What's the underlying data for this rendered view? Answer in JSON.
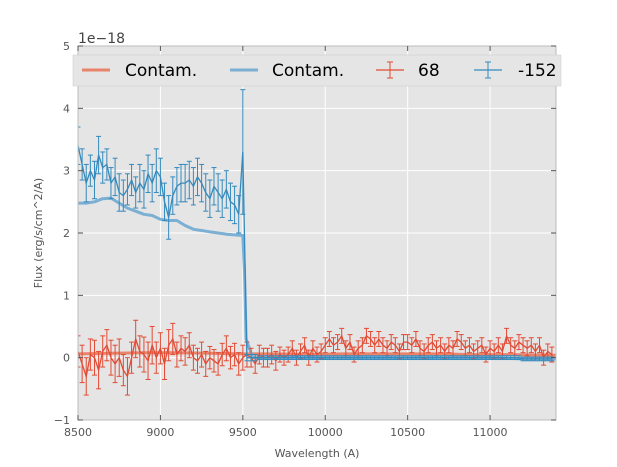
{
  "chart_data": {
    "type": "line",
    "title": "",
    "xlabel": "Wavelength (A)",
    "ylabel": "Flux (erg/s/cm^2/A)",
    "y_offset_label": "1e−18",
    "xlim": [
      8500,
      11400
    ],
    "ylim": [
      -1,
      5
    ],
    "xticks": [
      8500,
      9000,
      9500,
      10000,
      10500,
      11000
    ],
    "xtick_labels": [
      "8500",
      "9000",
      "9500",
      "10000",
      "10500",
      "11000"
    ],
    "yticks": [
      -1,
      0,
      1,
      2,
      3,
      4,
      5
    ],
    "ytick_labels": [
      "−1",
      "0",
      "1",
      "2",
      "3",
      "4",
      "5"
    ],
    "grid": true,
    "legend_placement": "top",
    "legend": [
      {
        "label": "Contam.",
        "kind": "line",
        "color": "#e8836c"
      },
      {
        "label": "Contam.",
        "kind": "line",
        "color": "#7bafd4"
      },
      {
        "label": "68",
        "kind": "errorbar",
        "color": "#e24a33"
      },
      {
        "label": "-152",
        "kind": "errorbar",
        "color": "#348abd"
      }
    ],
    "series": [
      {
        "name": "Contam. (68)",
        "kind": "line",
        "color": "#e8836c",
        "x": [
          8500,
          8700,
          8900,
          9100,
          9300,
          9500,
          9700,
          9900,
          10100,
          10300,
          10500,
          10700,
          10900,
          11100,
          11400
        ],
        "y": [
          0.06,
          0.07,
          0.08,
          0.08,
          0.07,
          0.06,
          0.06,
          0.05,
          0.06,
          0.06,
          0.06,
          0.06,
          0.05,
          0.05,
          0.04
        ]
      },
      {
        "name": "Contam. (-152)",
        "kind": "line",
        "color": "#7bafd4",
        "x": [
          8500,
          8550,
          8600,
          8650,
          8700,
          8750,
          8800,
          8850,
          8900,
          8950,
          9000,
          9050,
          9100,
          9150,
          9200,
          9250,
          9300,
          9350,
          9400,
          9450,
          9500,
          9510,
          9520,
          9560,
          9700,
          10000,
          10500,
          11000,
          11200,
          11400
        ],
        "y": [
          2.48,
          2.48,
          2.5,
          2.55,
          2.56,
          2.48,
          2.4,
          2.35,
          2.3,
          2.28,
          2.22,
          2.2,
          2.2,
          2.12,
          2.06,
          2.04,
          2.02,
          2.0,
          1.98,
          1.97,
          1.96,
          1.4,
          0.3,
          0.0,
          0.0,
          0.0,
          0.0,
          0.0,
          -0.02,
          -0.02
        ]
      },
      {
        "name": "68",
        "kind": "errorbar",
        "color": "#e24a33",
        "x": [
          8500,
          8525,
          8550,
          8575,
          8600,
          8625,
          8650,
          8675,
          8700,
          8725,
          8750,
          8775,
          8800,
          8825,
          8850,
          8875,
          8900,
          8925,
          8950,
          8975,
          9000,
          9025,
          9050,
          9075,
          9100,
          9125,
          9150,
          9175,
          9200,
          9225,
          9250,
          9275,
          9300,
          9325,
          9350,
          9375,
          9400,
          9425,
          9450,
          9475,
          9500,
          9525,
          9550,
          9575,
          9600,
          9625,
          9650,
          9675,
          9700,
          9725,
          9750,
          9775,
          9800,
          9825,
          9850,
          9875,
          9900,
          9925,
          9950,
          9975,
          10000,
          10025,
          10050,
          10075,
          10100,
          10125,
          10150,
          10175,
          10200,
          10225,
          10250,
          10275,
          10300,
          10325,
          10350,
          10375,
          10400,
          10425,
          10450,
          10475,
          10500,
          10525,
          10550,
          10575,
          10600,
          10625,
          10650,
          10675,
          10700,
          10725,
          10750,
          10775,
          10800,
          10825,
          10850,
          10875,
          10900,
          10925,
          10950,
          10975,
          11000,
          11025,
          11050,
          11075,
          11100,
          11125,
          11150,
          11175,
          11200,
          11225,
          11250,
          11275,
          11300,
          11325,
          11350,
          11375
        ],
        "y": [
          0.1,
          -0.1,
          -0.3,
          0.05,
          0.0,
          -0.2,
          0.1,
          0.2,
          0.0,
          -0.1,
          0.0,
          -0.2,
          -0.3,
          0.0,
          0.3,
          0.1,
          0.05,
          -0.05,
          0.2,
          0.0,
          0.15,
          -0.1,
          0.2,
          0.3,
          0.05,
          0.15,
          0.1,
          0.2,
          0.0,
          -0.05,
          0.05,
          -0.1,
          0.0,
          -0.05,
          -0.1,
          0.05,
          0.15,
          0.0,
          0.05,
          -0.1,
          0.0,
          0.05,
          0.0,
          -0.1,
          0.05,
          0.0,
          0.0,
          0.05,
          -0.05,
          0.05,
          0.0,
          0.05,
          0.15,
          0.0,
          0.1,
          0.2,
          0.0,
          0.15,
          0.05,
          0.1,
          0.2,
          0.3,
          0.2,
          0.25,
          0.35,
          0.15,
          0.25,
          0.05,
          0.15,
          0.2,
          0.35,
          0.3,
          0.2,
          0.3,
          0.2,
          0.15,
          0.25,
          0.2,
          0.1,
          0.25,
          0.25,
          0.2,
          0.3,
          0.15,
          0.1,
          0.2,
          0.25,
          0.15,
          0.2,
          0.1,
          0.2,
          0.15,
          0.3,
          0.25,
          0.15,
          0.2,
          0.1,
          0.15,
          0.2,
          0.05,
          0.15,
          0.1,
          0.2,
          0.1,
          0.35,
          0.2,
          0.15,
          0.25,
          0.2,
          0.15,
          0.2,
          0.1,
          0.2,
          0.0,
          0.1,
          0.05
        ],
        "err": [
          0.25,
          0.3,
          0.3,
          0.25,
          0.28,
          0.3,
          0.25,
          0.25,
          0.28,
          0.3,
          0.3,
          0.25,
          0.3,
          0.25,
          0.3,
          0.25,
          0.28,
          0.3,
          0.3,
          0.25,
          0.25,
          0.25,
          0.25,
          0.25,
          0.2,
          0.2,
          0.22,
          0.2,
          0.2,
          0.2,
          0.2,
          0.2,
          0.18,
          0.18,
          0.18,
          0.18,
          0.2,
          0.18,
          0.18,
          0.18,
          0.2,
          0.2,
          0.15,
          0.15,
          0.15,
          0.15,
          0.15,
          0.15,
          0.15,
          0.12,
          0.12,
          0.12,
          0.12,
          0.12,
          0.12,
          0.12,
          0.12,
          0.12,
          0.12,
          0.12,
          0.12,
          0.12,
          0.12,
          0.12,
          0.12,
          0.12,
          0.12,
          0.12,
          0.12,
          0.12,
          0.12,
          0.12,
          0.12,
          0.12,
          0.12,
          0.12,
          0.12,
          0.12,
          0.12,
          0.12,
          0.12,
          0.12,
          0.12,
          0.12,
          0.12,
          0.12,
          0.12,
          0.12,
          0.12,
          0.12,
          0.12,
          0.12,
          0.12,
          0.12,
          0.12,
          0.12,
          0.12,
          0.12,
          0.12,
          0.12,
          0.12,
          0.12,
          0.12,
          0.12,
          0.12,
          0.12,
          0.12,
          0.12,
          0.12,
          0.12,
          0.12,
          0.12,
          0.12,
          0.12,
          0.12,
          0.12
        ]
      },
      {
        "name": "-152",
        "kind": "errorbar",
        "color": "#348abd",
        "x": [
          8500,
          8525,
          8550,
          8575,
          8600,
          8625,
          8650,
          8675,
          8700,
          8725,
          8750,
          8775,
          8800,
          8825,
          8850,
          8875,
          8900,
          8925,
          8950,
          8975,
          9000,
          9025,
          9050,
          9075,
          9100,
          9125,
          9150,
          9175,
          9200,
          9225,
          9250,
          9275,
          9300,
          9325,
          9350,
          9375,
          9400,
          9425,
          9450,
          9475,
          9500,
          9525,
          9550,
          9575,
          9600,
          9625,
          9650,
          9675,
          9700,
          9725,
          9750,
          9775,
          9800,
          9825,
          9850,
          9875,
          9900,
          9925,
          9950,
          9975,
          10000,
          10025,
          10050,
          10075,
          10100,
          10125,
          10150,
          10175,
          10200,
          10225,
          10250,
          10275,
          10300,
          10325,
          10350,
          10375,
          10400,
          10425,
          10450,
          10475,
          10500,
          10525,
          10550,
          10575,
          10600,
          10625,
          10650,
          10675,
          10700,
          10725,
          10750,
          10775,
          10800,
          10825,
          10850,
          10875,
          10900,
          10925,
          10950,
          10975,
          11000,
          11025,
          11050,
          11075,
          11100,
          11125,
          11150,
          11175,
          11200,
          11225,
          11250,
          11275,
          11300,
          11325,
          11350,
          11375
        ],
        "y": [
          3.4,
          3.1,
          2.8,
          3.0,
          2.85,
          3.25,
          3.05,
          3.1,
          2.8,
          2.9,
          2.65,
          2.6,
          2.7,
          2.85,
          2.65,
          2.8,
          2.7,
          2.95,
          2.8,
          3.0,
          2.9,
          2.5,
          2.25,
          2.6,
          2.75,
          2.8,
          2.8,
          2.85,
          2.75,
          2.9,
          2.8,
          2.65,
          2.55,
          2.75,
          2.65,
          2.55,
          2.7,
          2.5,
          2.45,
          2.3,
          3.3,
          0.0,
          0.0,
          0.0,
          0.0,
          0.0,
          0.0,
          0.0,
          0.0,
          0.0,
          0.0,
          0.0,
          0.0,
          0.0,
          0.0,
          0.0,
          0.0,
          0.0,
          0.0,
          0.0,
          0.0,
          0.0,
          0.0,
          0.0,
          0.0,
          0.0,
          0.0,
          0.0,
          0.0,
          0.0,
          0.0,
          0.0,
          0.0,
          0.0,
          0.0,
          0.0,
          0.0,
          0.0,
          0.0,
          0.0,
          0.0,
          0.0,
          0.0,
          0.0,
          0.0,
          0.0,
          0.0,
          0.0,
          0.0,
          0.0,
          0.0,
          0.0,
          0.0,
          0.0,
          0.0,
          0.0,
          0.0,
          0.0,
          0.0,
          0.0,
          0.0,
          0.0,
          0.0,
          0.0,
          0.0,
          0.0,
          0.0,
          0.0,
          -0.02,
          -0.02,
          -0.02,
          -0.02,
          -0.02,
          -0.02,
          -0.02,
          -0.02
        ],
        "err": [
          0.3,
          0.25,
          0.3,
          0.25,
          0.3,
          0.3,
          0.25,
          0.25,
          0.25,
          0.3,
          0.3,
          0.25,
          0.25,
          0.25,
          0.25,
          0.3,
          0.3,
          0.3,
          0.3,
          0.35,
          0.3,
          0.3,
          0.35,
          0.3,
          0.3,
          0.3,
          0.3,
          0.3,
          0.3,
          0.3,
          0.3,
          0.3,
          0.3,
          0.3,
          0.3,
          0.3,
          0.3,
          0.3,
          0.3,
          0.3,
          1.0,
          0.05,
          0.05,
          0.05,
          0.03,
          0.03,
          0.03,
          0.03,
          0.03,
          0.03,
          0.03,
          0.03,
          0.03,
          0.03,
          0.03,
          0.03,
          0.03,
          0.03,
          0.03,
          0.03,
          0.03,
          0.03,
          0.03,
          0.03,
          0.03,
          0.03,
          0.03,
          0.03,
          0.03,
          0.03,
          0.03,
          0.03,
          0.03,
          0.03,
          0.03,
          0.03,
          0.03,
          0.03,
          0.03,
          0.03,
          0.03,
          0.03,
          0.03,
          0.03,
          0.03,
          0.03,
          0.03,
          0.03,
          0.03,
          0.03,
          0.03,
          0.03,
          0.03,
          0.03,
          0.03,
          0.03,
          0.03,
          0.03,
          0.03,
          0.03,
          0.03,
          0.03,
          0.03,
          0.03,
          0.03,
          0.03,
          0.03,
          0.03,
          0.03,
          0.03,
          0.03,
          0.03,
          0.03,
          0.03,
          0.03,
          0.03
        ]
      }
    ]
  }
}
